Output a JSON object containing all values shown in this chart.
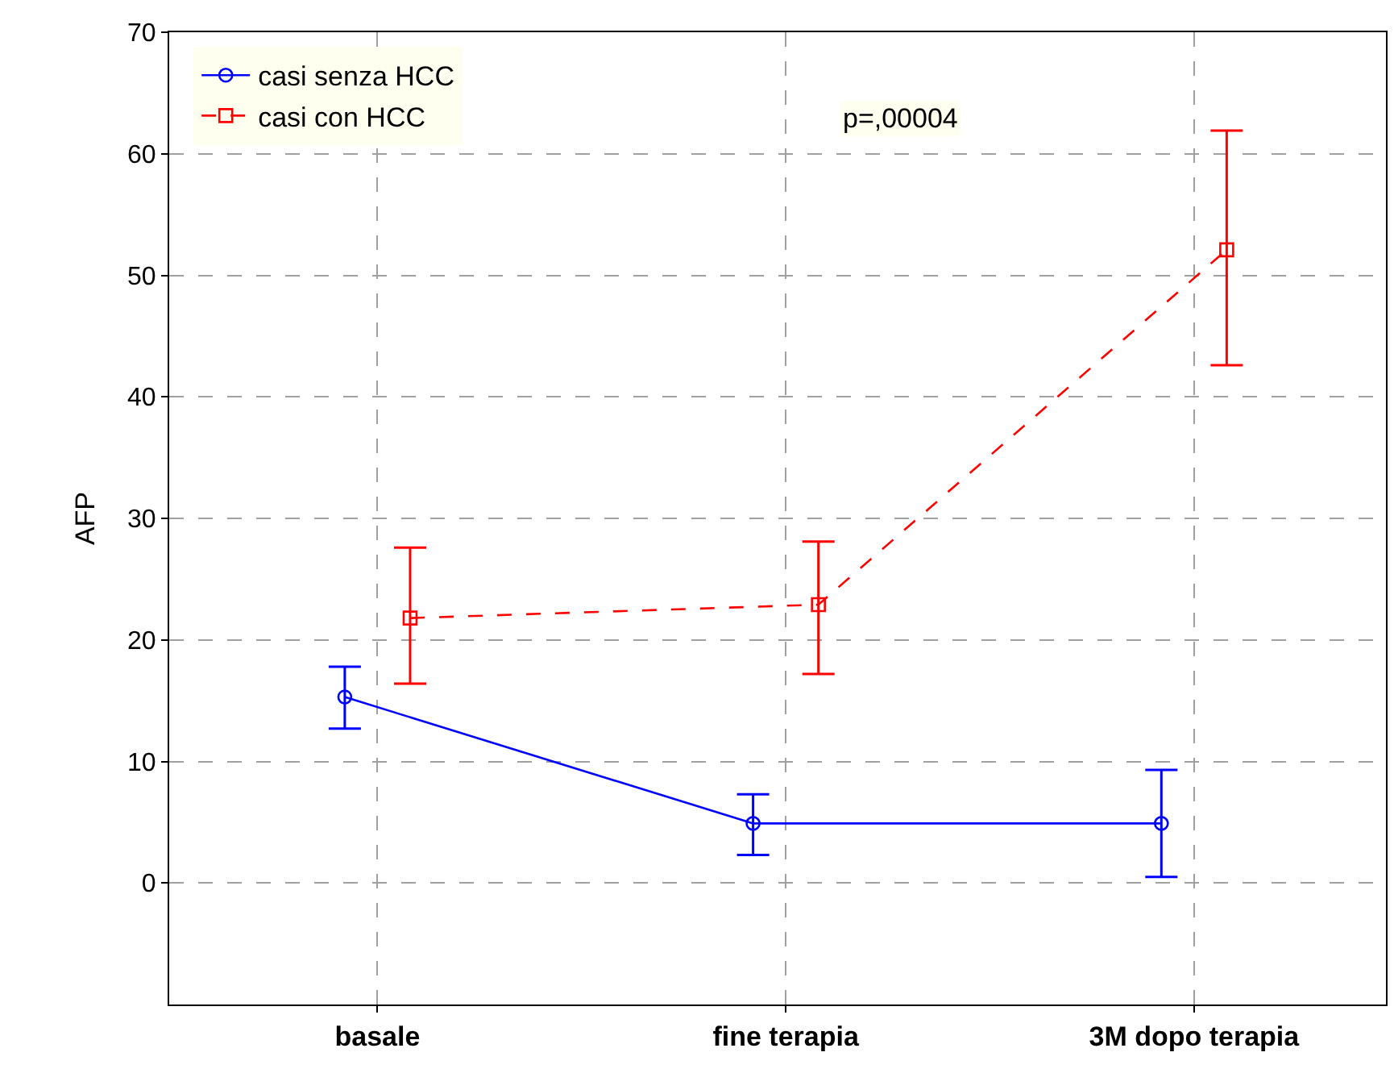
{
  "chart_data": {
    "type": "line",
    "ylabel": "AFP",
    "categories": [
      "basale",
      "fine terapia",
      "3M dopo terapia"
    ],
    "ylim": [
      -10,
      70
    ],
    "yticks": [
      0,
      10,
      20,
      30,
      40,
      50,
      60,
      70
    ],
    "grid": true,
    "legend": "top left",
    "annotations": [
      "p=,00004"
    ],
    "series": [
      {
        "name": "casi senza HCC",
        "color": "#0000ff",
        "marker": "circle",
        "line_style": "solid",
        "values": [
          15.3,
          4.9,
          4.9
        ],
        "errors": [
          [
            12.7,
            17.8
          ],
          [
            2.3,
            7.3
          ],
          [
            0.5,
            9.3
          ]
        ]
      },
      {
        "name": "casi con HCC",
        "color": "#ff0000",
        "marker": "square",
        "line_style": "dashed",
        "values": [
          21.8,
          22.9,
          52.1
        ],
        "errors": [
          [
            16.4,
            27.6
          ],
          [
            17.2,
            28.1
          ],
          [
            42.6,
            61.9
          ]
        ]
      }
    ]
  }
}
